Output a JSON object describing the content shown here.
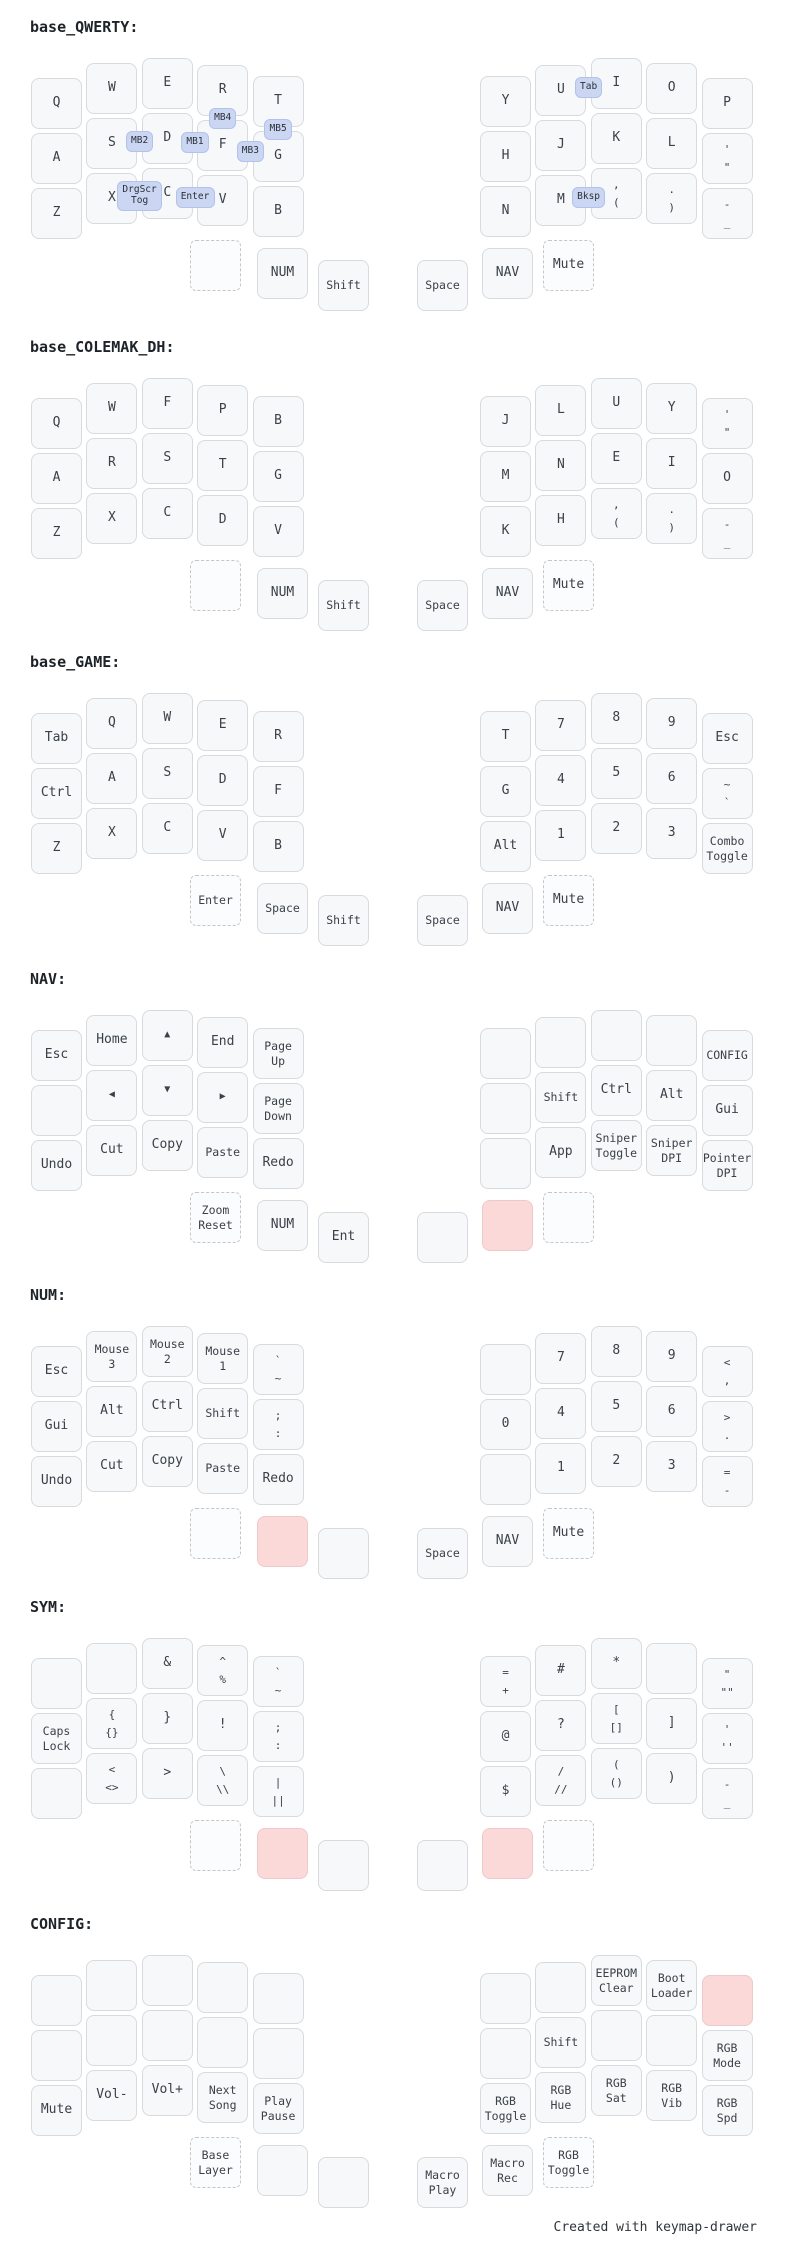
{
  "page": {
    "background": "#ffffff",
    "footer": "Created with keymap-drawer"
  },
  "colors": {
    "key_fill": "#f6f8fa",
    "key_border": "#d8dbde",
    "key_text": "#3b4148",
    "ghost_fill": "#fbfcfd",
    "ghost_border": "#c4c7ca",
    "held_fill": "#fcd9d9",
    "held_border": "#eec9c9",
    "combo_fill": "#cbd6f2",
    "combo_border": "#b3c2ea",
    "title_text": "#1d2329"
  },
  "layers": [
    {
      "id": "base_qwerty",
      "title": "base_QWERTY:",
      "keys": [
        "Q",
        "W",
        "E",
        "R",
        "T",
        "Y",
        "U",
        "I",
        "O",
        "P",
        "A",
        "S",
        "D",
        "F",
        "G",
        "H",
        "J",
        "K",
        "L",
        [
          "'",
          "\""
        ],
        "Z",
        "X",
        "C",
        "V",
        "B",
        "N",
        "M",
        [
          ",",
          "("
        ],
        [
          ".",
          ")"
        ],
        [
          "-",
          "_"
        ],
        {
          "ghost": ""
        },
        "NUM",
        "Shift",
        "Space",
        "NAV",
        {
          "ghost": "Mute"
        }
      ],
      "combos": [
        {
          "label": "Tab",
          "type": "h",
          "row": 0,
          "cols": [
            6,
            7
          ]
        },
        {
          "label": "MB4",
          "type": "v",
          "col": 3,
          "rows": [
            0,
            1
          ]
        },
        {
          "label": "MB5",
          "type": "v",
          "col": 4,
          "rows": [
            0,
            1
          ]
        },
        {
          "label": "MB2",
          "type": "h",
          "row": 1,
          "cols": [
            1,
            2
          ]
        },
        {
          "label": "MB1",
          "type": "h",
          "row": 1,
          "cols": [
            2,
            3
          ]
        },
        {
          "label": "MB3",
          "type": "h",
          "row": 1,
          "cols": [
            3,
            4
          ]
        },
        {
          "label": "DrgScr|Tog",
          "type": "h",
          "row": 2,
          "cols": [
            1,
            2
          ]
        },
        {
          "label": "Enter",
          "type": "h",
          "row": 2,
          "cols": [
            2,
            3
          ]
        },
        {
          "label": "Bksp",
          "type": "h",
          "row": 2,
          "cols": [
            6,
            7
          ]
        }
      ]
    },
    {
      "id": "base_colemak_dh",
      "title": "base_COLEMAK_DH:",
      "keys": [
        "Q",
        "W",
        "F",
        "P",
        "B",
        "J",
        "L",
        "U",
        "Y",
        [
          "'",
          "\""
        ],
        "A",
        "R",
        "S",
        "T",
        "G",
        "M",
        "N",
        "E",
        "I",
        "O",
        "Z",
        "X",
        "C",
        "D",
        "V",
        "K",
        "H",
        [
          ",",
          "("
        ],
        [
          ".",
          ")"
        ],
        [
          "-",
          "_"
        ],
        {
          "ghost": ""
        },
        "NUM",
        "Shift",
        "Space",
        "NAV",
        {
          "ghost": "Mute"
        }
      ],
      "combos": []
    },
    {
      "id": "base_game",
      "title": "base_GAME:",
      "keys": [
        "Tab",
        "Q",
        "W",
        "E",
        "R",
        "T",
        "7",
        "8",
        "9",
        "Esc",
        "Ctrl",
        "A",
        "S",
        "D",
        "F",
        "G",
        "4",
        "5",
        "6",
        [
          "~",
          "`"
        ],
        "Z",
        "X",
        "C",
        "V",
        "B",
        "Alt",
        "1",
        "2",
        "3",
        "Combo|Toggle",
        {
          "ghost": "Enter"
        },
        "Space",
        "Shift",
        "Space",
        "NAV",
        {
          "ghost": "Mute"
        }
      ],
      "combos": []
    },
    {
      "id": "nav",
      "title": "NAV:",
      "keys": [
        "Esc",
        "Home",
        "▲",
        "End",
        "Page|Up",
        "",
        "",
        "",
        "",
        "CONFIG",
        "",
        "◀",
        "▼",
        "▶",
        "Page|Down",
        "",
        "Shift",
        "Ctrl",
        "Alt",
        "Gui",
        "Undo",
        "Cut",
        "Copy",
        "Paste",
        "Redo",
        "",
        "App",
        "Sniper|Toggle",
        "Sniper|DPI",
        "Pointer|DPI",
        {
          "ghost": "Zoom|Reset"
        },
        "NUM",
        "Ent",
        "",
        {
          "held": true
        },
        {
          "ghost": ""
        }
      ],
      "combos": []
    },
    {
      "id": "num",
      "title": "NUM:",
      "keys": [
        "Esc",
        "Mouse|3",
        "Mouse|2",
        "Mouse|1",
        [
          "`",
          "~"
        ],
        "",
        "7",
        "8",
        "9",
        [
          "<",
          ","
        ],
        "Gui",
        "Alt",
        "Ctrl",
        "Shift",
        [
          ";",
          ":"
        ],
        "0",
        "4",
        "5",
        "6",
        [
          ">",
          "."
        ],
        "Undo",
        "Cut",
        "Copy",
        "Paste",
        "Redo",
        "",
        "1",
        "2",
        "3",
        [
          "=",
          "-"
        ],
        {
          "ghost": ""
        },
        {
          "held": true
        },
        "",
        "Space",
        "NAV",
        {
          "ghost": "Mute"
        }
      ],
      "combos": []
    },
    {
      "id": "sym",
      "title": "SYM:",
      "keys": [
        "",
        "",
        "&",
        [
          "^",
          "%"
        ],
        [
          "`",
          "~"
        ],
        [
          "=",
          "+"
        ],
        "#",
        "*",
        "",
        [
          "\"",
          "\"\""
        ],
        "Caps|Lock",
        [
          "{",
          "{}"
        ],
        "}",
        "!",
        [
          ";",
          ":"
        ],
        "@",
        "?",
        [
          "[",
          "[]"
        ],
        "]",
        [
          "'",
          "''"
        ],
        "",
        [
          "<",
          "<>"
        ],
        ">",
        [
          "\\",
          "\\\\"
        ],
        [
          "|",
          "||"
        ],
        "$",
        [
          "/",
          "//"
        ],
        [
          "(",
          "()"
        ],
        ")",
        [
          "-",
          "_"
        ],
        {
          "ghost": ""
        },
        {
          "held": true
        },
        "",
        "",
        {
          "held": true
        },
        {
          "ghost": ""
        }
      ],
      "combos": []
    },
    {
      "id": "config",
      "title": "CONFIG:",
      "keys": [
        "",
        "",
        "",
        "",
        "",
        "",
        "",
        "EEPROM|Clear",
        "Boot|Loader",
        {
          "held": true
        },
        "",
        "",
        "",
        "",
        "",
        "",
        "Shift",
        "",
        "",
        "RGB|Mode",
        "Mute",
        "Vol-",
        "Vol+",
        "Next|Song",
        "Play|Pause",
        "RGB|Toggle",
        "RGB|Hue",
        "RGB|Sat",
        "RGB|Vib",
        "RGB|Spd",
        {
          "ghost": "Base|Layer"
        },
        "",
        "",
        "Macro|Play",
        "Macro|Rec",
        {
          "ghost": "RGB|Toggle"
        }
      ],
      "combos": []
    }
  ]
}
